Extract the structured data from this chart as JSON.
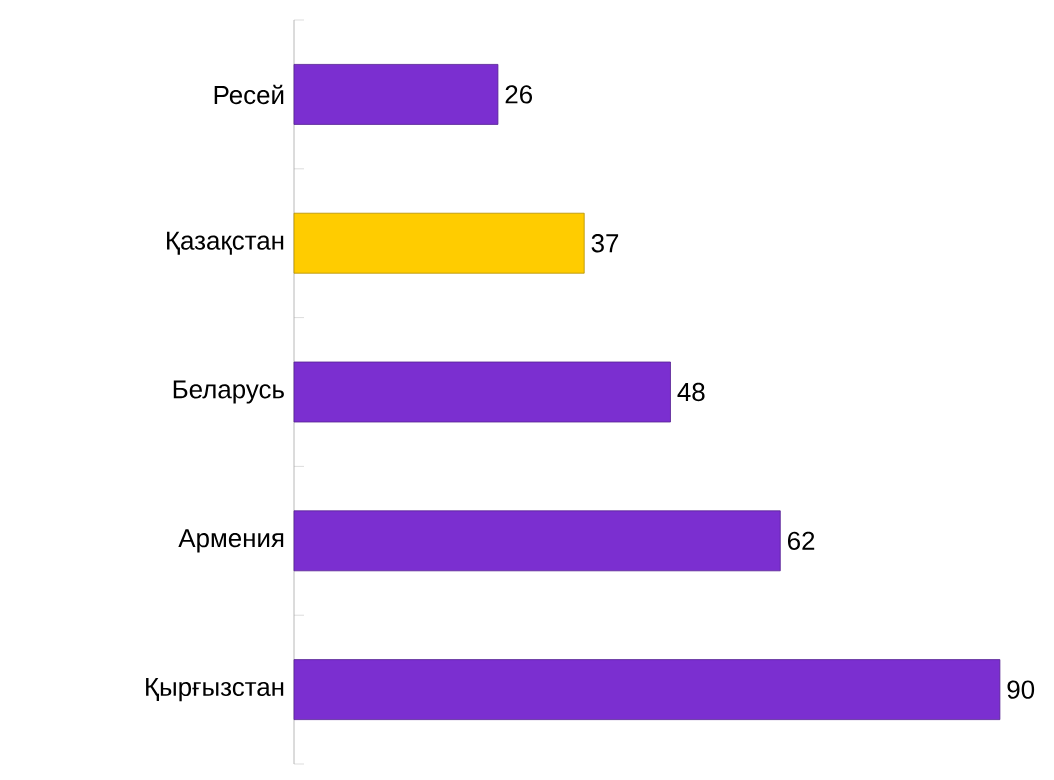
{
  "chart_data": {
    "type": "bar",
    "orientation": "horizontal",
    "categories": [
      "Ресей",
      "Қазақстан",
      "Беларусь",
      "Армения",
      "Қырғызстан"
    ],
    "values": [
      26,
      37,
      48,
      62,
      90
    ],
    "data_labels": true,
    "colors": [
      "#7b2fd0",
      "#ffcc00",
      "#7b2fd0",
      "#7b2fd0",
      "#7b2fd0"
    ]
  }
}
